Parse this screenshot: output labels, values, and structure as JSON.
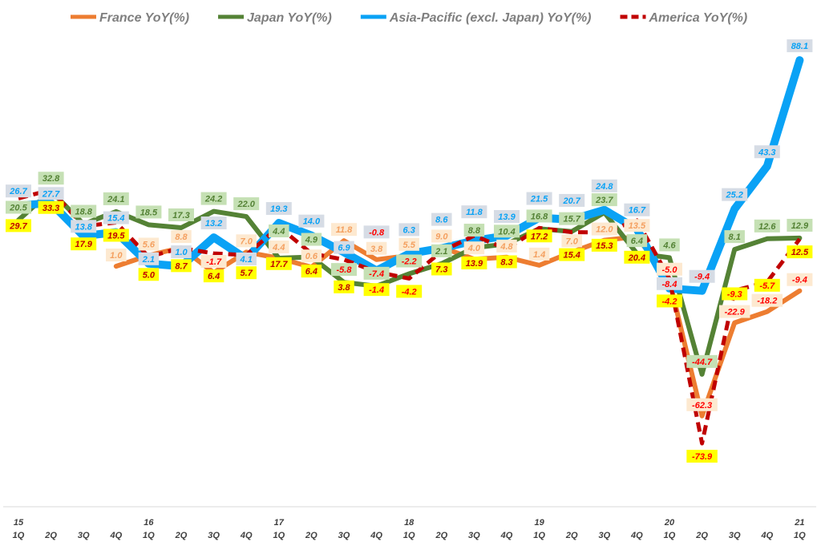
{
  "chart_data": {
    "type": "line",
    "title": "",
    "xlabel": "",
    "ylabel": "",
    "ylim": [
      -100,
      110
    ],
    "grid": false,
    "legend_position": "top",
    "categories": [
      {
        "year": "15",
        "q": "1Q"
      },
      {
        "year": "",
        "q": "2Q"
      },
      {
        "year": "",
        "q": "3Q"
      },
      {
        "year": "",
        "q": "4Q"
      },
      {
        "year": "16",
        "q": "1Q"
      },
      {
        "year": "",
        "q": "2Q"
      },
      {
        "year": "",
        "q": "3Q"
      },
      {
        "year": "",
        "q": "4Q"
      },
      {
        "year": "17",
        "q": "1Q"
      },
      {
        "year": "",
        "q": "2Q"
      },
      {
        "year": "",
        "q": "3Q"
      },
      {
        "year": "",
        "q": "4Q"
      },
      {
        "year": "18",
        "q": "1Q"
      },
      {
        "year": "",
        "q": "2Q"
      },
      {
        "year": "",
        "q": "3Q"
      },
      {
        "year": "",
        "q": "4Q"
      },
      {
        "year": "19",
        "q": "1Q"
      },
      {
        "year": "",
        "q": "2Q"
      },
      {
        "year": "",
        "q": "3Q"
      },
      {
        "year": "",
        "q": "4Q"
      },
      {
        "year": "20",
        "q": "1Q"
      },
      {
        "year": "",
        "q": "2Q"
      },
      {
        "year": "",
        "q": "3Q"
      },
      {
        "year": "",
        "q": "4Q"
      },
      {
        "year": "21",
        "q": "1Q"
      }
    ],
    "series": [
      {
        "name": "France YoY(%)",
        "color": "#ED7D31",
        "label_bg": "#FDE9D0",
        "label_fg": "#F4A060",
        "dashed": false,
        "width": 6,
        "label_dy": -14,
        "values": [
          null,
          null,
          null,
          1.0,
          5.6,
          8.8,
          -1.7,
          7.0,
          4.4,
          0.6,
          11.8,
          3.8,
          5.5,
          9.0,
          4.0,
          4.8,
          1.4,
          7.0,
          12.0,
          13.5,
          -5.0,
          -62.3,
          -22.9,
          -18.2,
          -9.4
        ]
      },
      {
        "name": "Japan YoY(%)",
        "color": "#548235",
        "label_bg": "#C5E0B4",
        "label_fg": "#548235",
        "dashed": false,
        "width": 6,
        "label_dy": -16,
        "values": [
          20.5,
          32.8,
          18.8,
          24.1,
          18.5,
          17.3,
          24.2,
          22.0,
          4.4,
          4.9,
          -5.8,
          -7.4,
          -2.2,
          2.1,
          8.8,
          10.4,
          16.8,
          15.7,
          23.7,
          6.4,
          4.6,
          -44.7,
          8.1,
          12.6,
          12.9
        ]
      },
      {
        "name": "Asia-Pacific (excl. Japan) YoY(%)",
        "color": "#0AA2F5",
        "label_bg": "#D6DCE5",
        "label_fg": "#0AA2F5",
        "dashed": false,
        "width": 10,
        "label_dy": -18,
        "values": [
          26.7,
          27.7,
          13.8,
          15.4,
          2.1,
          1.0,
          13.2,
          4.1,
          19.3,
          14.0,
          6.9,
          -0.8,
          6.3,
          8.6,
          11.8,
          13.9,
          21.5,
          20.7,
          24.8,
          16.7,
          -8.4,
          -9.4,
          25.2,
          43.3,
          88.1
        ]
      },
      {
        "name": "America YoY(%)",
        "color": "#C00000",
        "label_bg": "#FFFF00",
        "label_fg": "#C00000",
        "dashed": true,
        "width": 5,
        "label_dy": 16,
        "values": [
          29.7,
          33.3,
          17.9,
          19.5,
          5.0,
          8.7,
          6.4,
          5.7,
          17.7,
          6.4,
          3.8,
          -1.4,
          -4.2,
          7.3,
          13.9,
          8.3,
          17.2,
          15.4,
          15.3,
          20.4,
          -4.2,
          -73.9,
          -9.3,
          -5.7,
          12.5
        ]
      }
    ]
  }
}
